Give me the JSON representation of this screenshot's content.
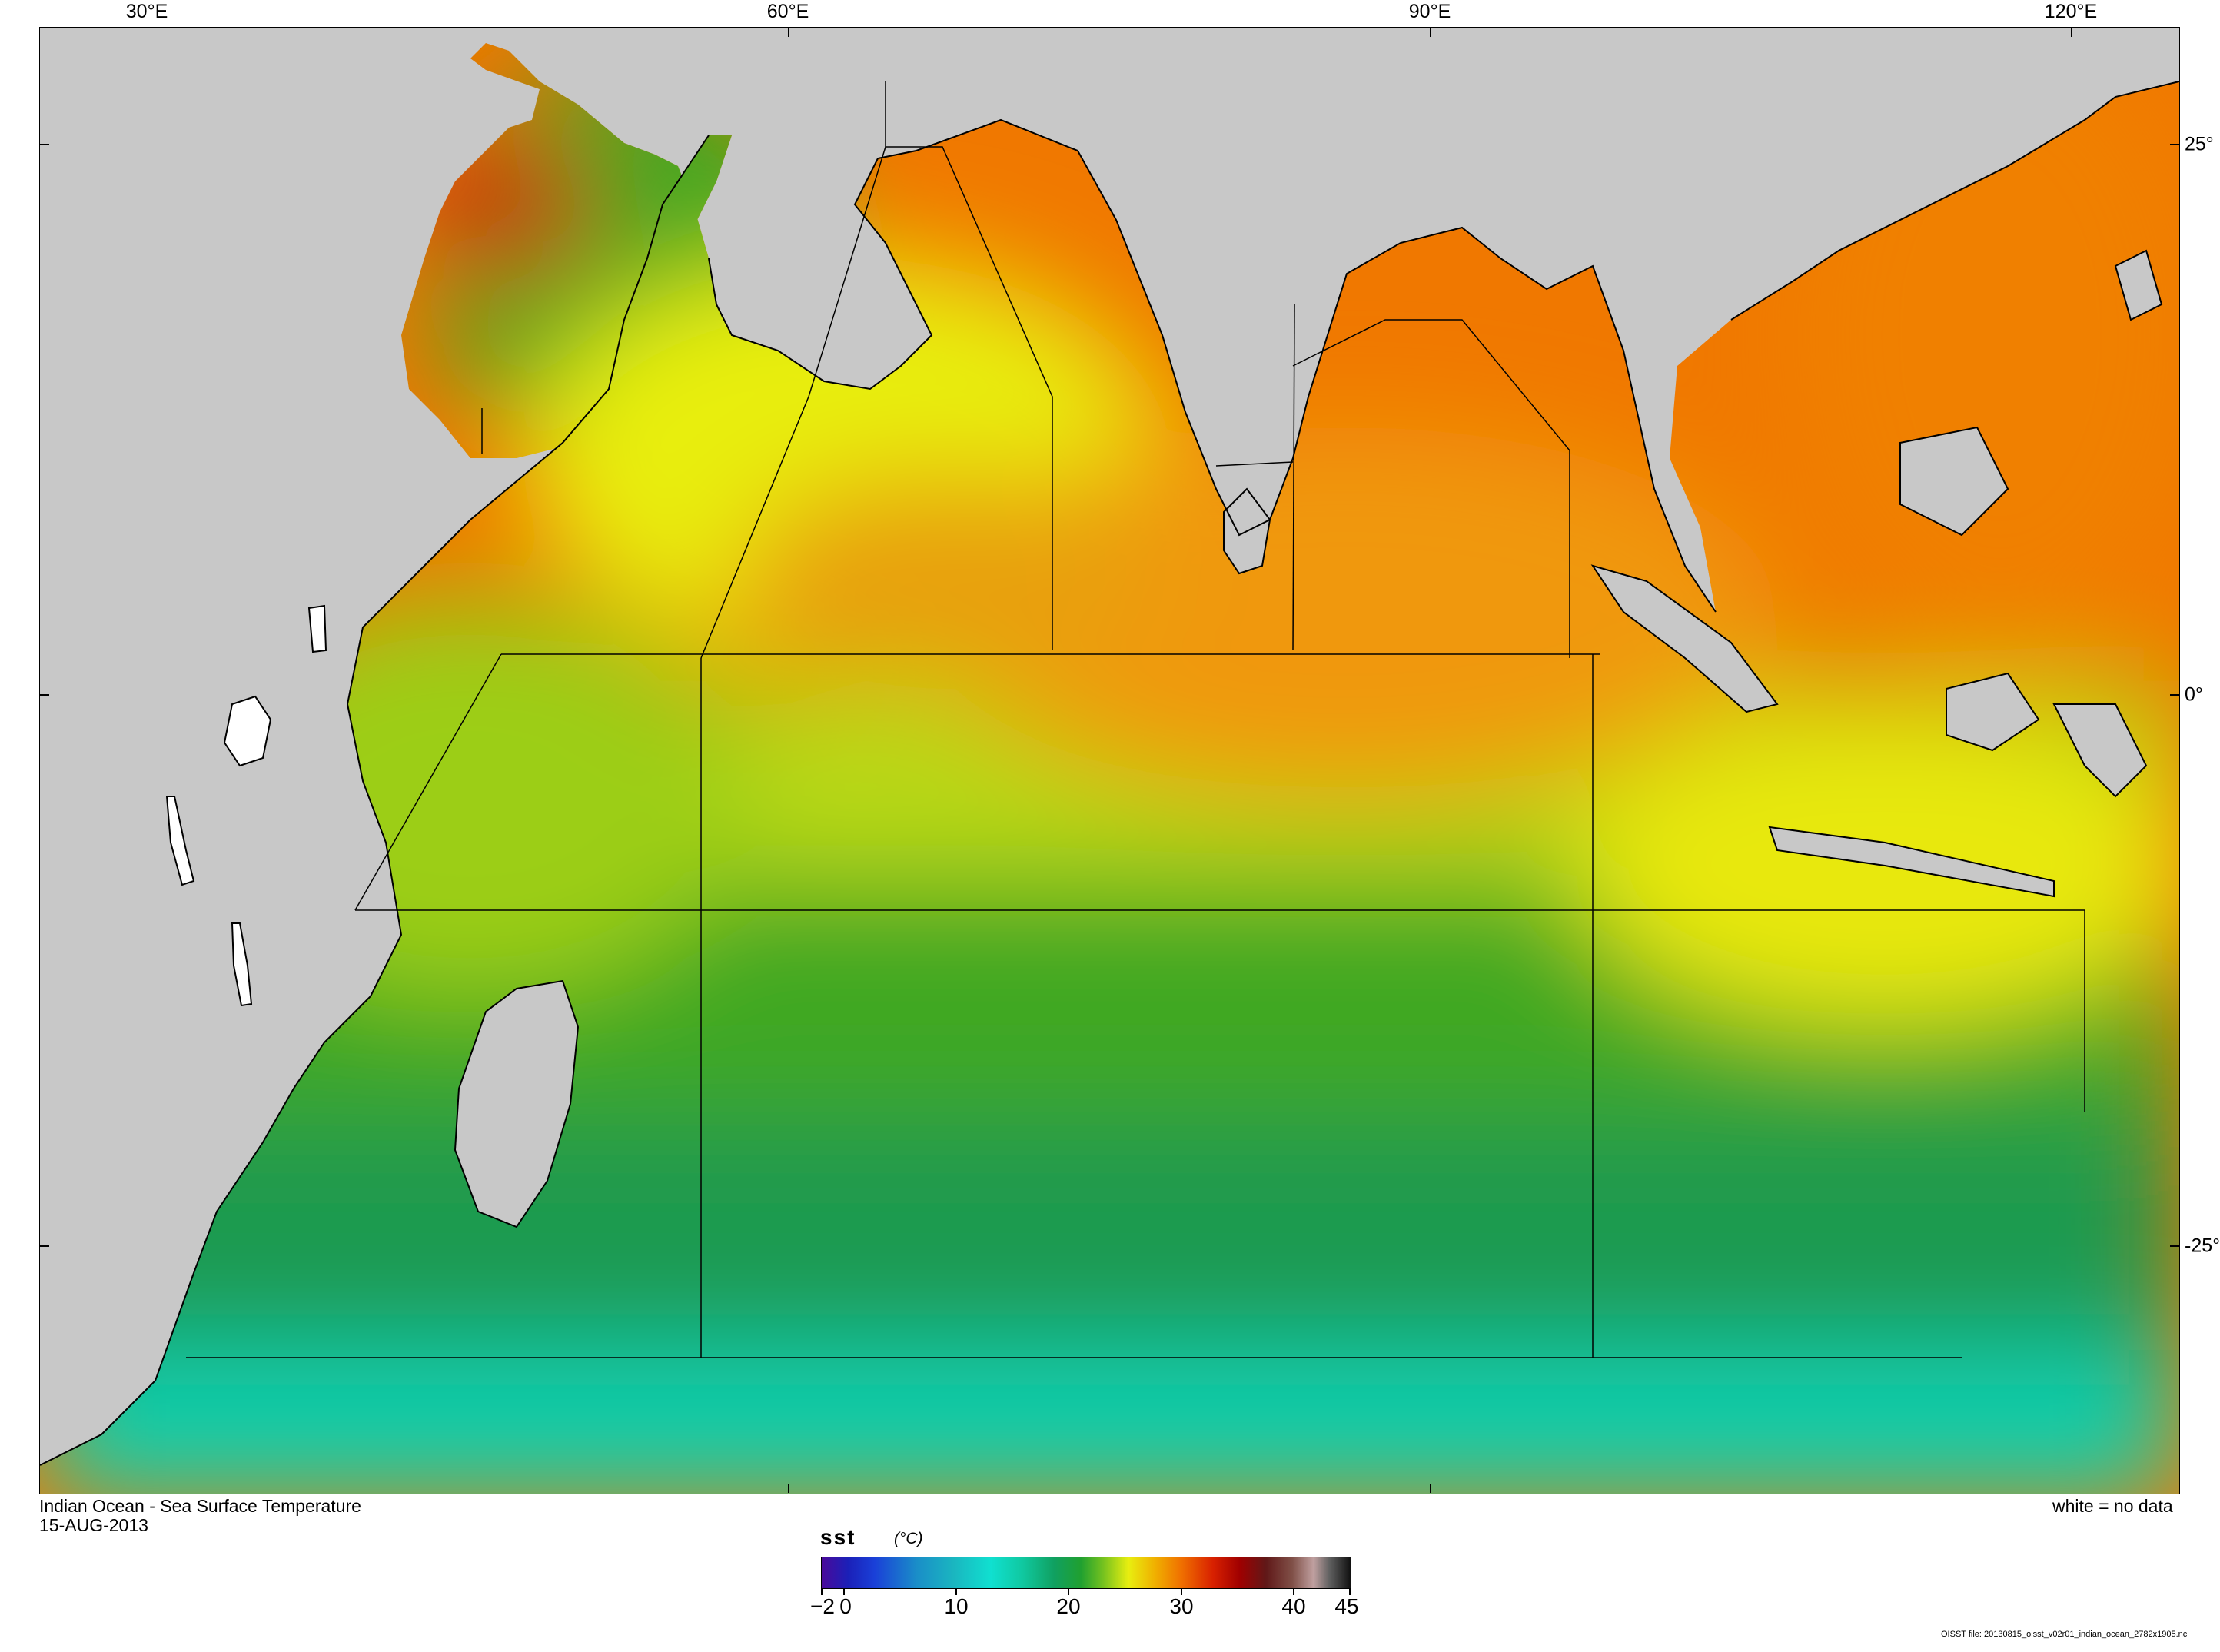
{
  "map": {
    "title": "Indian Ocean - Sea Surface Temperature",
    "date": "15-AUG-2013",
    "legend_note": "white = no data",
    "file_note": "OISST file: 20130815_oisst_v02r01_indian_ocean_2782x1905.nc",
    "longitude_ticks": [
      "30°E",
      "60°E",
      "90°E",
      "120°E"
    ],
    "latitude_ticks": [
      "25°",
      "0°",
      "-25°"
    ],
    "land_color": "#c8c8c8",
    "colorbar": {
      "variable": "sst",
      "unit": "(°C)",
      "labels": [
        "−2",
        "0",
        "10",
        "20",
        "30",
        "40",
        "45"
      ],
      "range": [
        -2,
        45
      ]
    }
  }
}
